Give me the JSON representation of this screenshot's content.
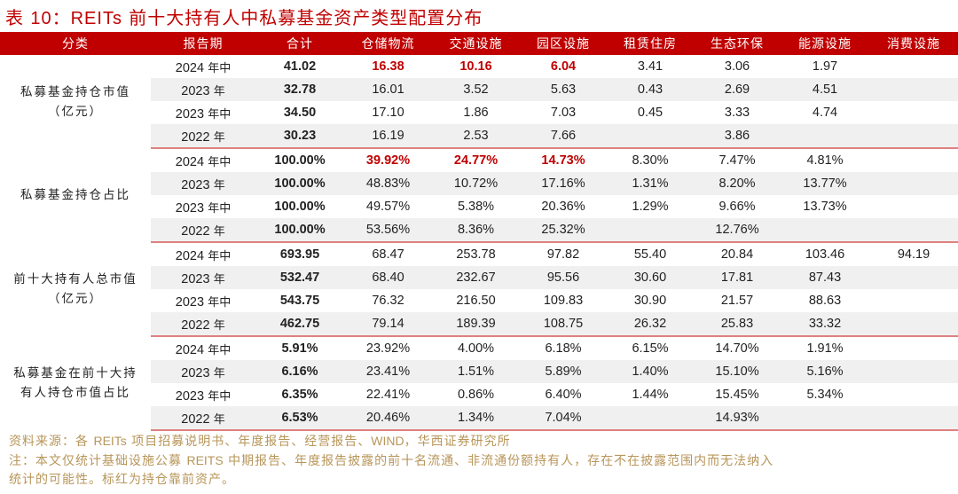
{
  "title": {
    "prefix": "表 ",
    "number": "10",
    "sep": "：",
    "latin": "REITs",
    "text": " 前十大持有人中私募基金资产类型配置分布"
  },
  "table": {
    "headers": [
      "分类",
      "报告期",
      "合计",
      "仓储物流",
      "交通设施",
      "园区设施",
      "租赁住房",
      "生态环保",
      "能源设施",
      "消费设施"
    ],
    "highlight_color": "#c00000",
    "groups": [
      {
        "category_line1": "私募基金持仓市值",
        "category_line2": "（亿元）",
        "rows": [
          {
            "year": "2024",
            "suffix": " 年中",
            "total": "41.02",
            "values": [
              "16.38",
              "10.16",
              "6.04",
              "3.41",
              "3.06",
              "1.97",
              ""
            ],
            "red": [
              true,
              true,
              true,
              false,
              false,
              false,
              false
            ]
          },
          {
            "year": "2023",
            "suffix": " 年",
            "total": "32.78",
            "values": [
              "16.01",
              "3.52",
              "5.63",
              "0.43",
              "2.69",
              "4.51",
              ""
            ],
            "red": [
              false,
              false,
              false,
              false,
              false,
              false,
              false
            ]
          },
          {
            "year": "2023",
            "suffix": " 年中",
            "total": "34.50",
            "values": [
              "17.10",
              "1.86",
              "7.03",
              "0.45",
              "3.33",
              "4.74",
              ""
            ],
            "red": [
              false,
              false,
              false,
              false,
              false,
              false,
              false
            ]
          },
          {
            "year": "2022",
            "suffix": " 年",
            "total": "30.23",
            "values": [
              "16.19",
              "2.53",
              "7.66",
              "",
              "3.86",
              "",
              ""
            ],
            "red": [
              false,
              false,
              false,
              false,
              false,
              false,
              false
            ]
          }
        ]
      },
      {
        "category_line1": "私募基金持仓占比",
        "category_line2": "",
        "rows": [
          {
            "year": "2024",
            "suffix": " 年中",
            "total": "100.00%",
            "values": [
              "39.92%",
              "24.77%",
              "14.73%",
              "8.30%",
              "7.47%",
              "4.81%",
              ""
            ],
            "red": [
              true,
              true,
              true,
              false,
              false,
              false,
              false
            ]
          },
          {
            "year": "2023",
            "suffix": " 年",
            "total": "100.00%",
            "values": [
              "48.83%",
              "10.72%",
              "17.16%",
              "1.31%",
              "8.20%",
              "13.77%",
              ""
            ],
            "red": [
              false,
              false,
              false,
              false,
              false,
              false,
              false
            ]
          },
          {
            "year": "2023",
            "suffix": " 年中",
            "total": "100.00%",
            "values": [
              "49.57%",
              "5.38%",
              "20.36%",
              "1.29%",
              "9.66%",
              "13.73%",
              ""
            ],
            "red": [
              false,
              false,
              false,
              false,
              false,
              false,
              false
            ]
          },
          {
            "year": "2022",
            "suffix": " 年",
            "total": "100.00%",
            "values": [
              "53.56%",
              "8.36%",
              "25.32%",
              "",
              "12.76%",
              "",
              ""
            ],
            "red": [
              false,
              false,
              false,
              false,
              false,
              false,
              false
            ]
          }
        ]
      },
      {
        "category_line1": "前十大持有人总市值",
        "category_line2": "（亿元）",
        "rows": [
          {
            "year": "2024",
            "suffix": " 年中",
            "total": "693.95",
            "values": [
              "68.47",
              "253.78",
              "97.82",
              "55.40",
              "20.84",
              "103.46",
              "94.19"
            ],
            "red": [
              false,
              false,
              false,
              false,
              false,
              false,
              false
            ]
          },
          {
            "year": "2023",
            "suffix": " 年",
            "total": "532.47",
            "values": [
              "68.40",
              "232.67",
              "95.56",
              "30.60",
              "17.81",
              "87.43",
              ""
            ],
            "red": [
              false,
              false,
              false,
              false,
              false,
              false,
              false
            ]
          },
          {
            "year": "2023",
            "suffix": " 年中",
            "total": "543.75",
            "values": [
              "76.32",
              "216.50",
              "109.83",
              "30.90",
              "21.57",
              "88.63",
              ""
            ],
            "red": [
              false,
              false,
              false,
              false,
              false,
              false,
              false
            ]
          },
          {
            "year": "2022",
            "suffix": " 年",
            "total": "462.75",
            "values": [
              "79.14",
              "189.39",
              "108.75",
              "26.32",
              "25.83",
              "33.32",
              ""
            ],
            "red": [
              false,
              false,
              false,
              false,
              false,
              false,
              false
            ]
          }
        ]
      },
      {
        "category_line1": "私募基金在前十大持",
        "category_line2": "有人持仓市值占比",
        "rows": [
          {
            "year": "2024",
            "suffix": " 年中",
            "total": "5.91%",
            "values": [
              "23.92%",
              "4.00%",
              "6.18%",
              "6.15%",
              "14.70%",
              "1.91%",
              ""
            ],
            "red": [
              false,
              false,
              false,
              false,
              false,
              false,
              false
            ]
          },
          {
            "year": "2023",
            "suffix": " 年",
            "total": "6.16%",
            "values": [
              "23.41%",
              "1.51%",
              "5.89%",
              "1.40%",
              "15.10%",
              "5.16%",
              ""
            ],
            "red": [
              false,
              false,
              false,
              false,
              false,
              false,
              false
            ]
          },
          {
            "year": "2023",
            "suffix": " 年中",
            "total": "6.35%",
            "values": [
              "22.41%",
              "0.86%",
              "6.40%",
              "1.44%",
              "15.45%",
              "5.34%",
              ""
            ],
            "red": [
              false,
              false,
              false,
              false,
              false,
              false,
              false
            ]
          },
          {
            "year": "2022",
            "suffix": " 年",
            "total": "6.53%",
            "values": [
              "20.46%",
              "1.34%",
              "7.04%",
              "",
              "14.93%",
              "",
              ""
            ],
            "red": [
              false,
              false,
              false,
              false,
              false,
              false,
              false
            ]
          }
        ]
      }
    ]
  },
  "notes": {
    "source_prefix": "资料来源：各 ",
    "source_latin1": "REITs",
    "source_mid": " 项目招募说明书、年度报告、经营报告、",
    "source_latin2": "WIND",
    "source_suffix": "，华西证券研究所",
    "note_prefix": "注：本文仅统计基础设施公募 ",
    "note_latin": "REITS",
    "note_line1_rest": " 中期报告、年度报告披露的前十名流通、非流通份额持有人，存在不在披露范围内而无法纳入",
    "note_line2": "统计的可能性。标红为持仓靠前资产。"
  }
}
